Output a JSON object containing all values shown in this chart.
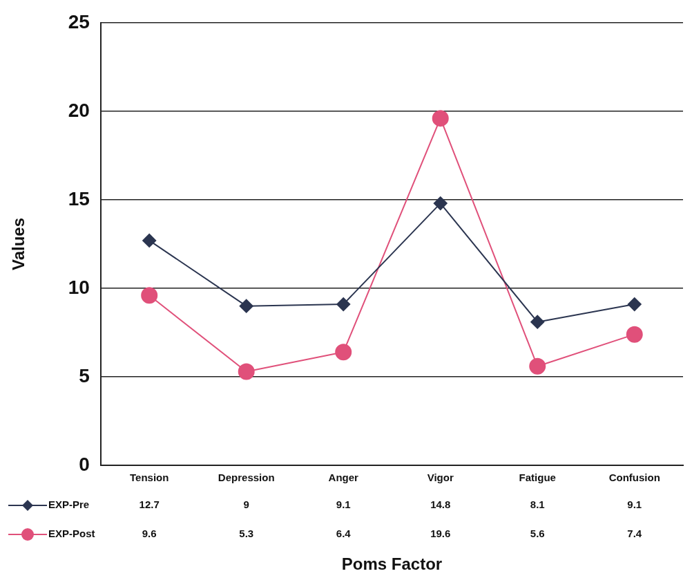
{
  "chart_data": {
    "type": "line",
    "xlabel": "Poms Factor",
    "ylabel": "Values",
    "categories": [
      "Tension",
      "Depression",
      "Anger",
      "Vigor",
      "Fatigue",
      "Confusion"
    ],
    "series": [
      {
        "name": "EXP-Pre",
        "color": "#2b3550",
        "marker": "diamond",
        "values": [
          12.7,
          9,
          9.1,
          14.8,
          8.1,
          9.1
        ]
      },
      {
        "name": "EXP-Post",
        "color": "#e0507a",
        "marker": "circle",
        "values": [
          9.6,
          5.3,
          6.4,
          19.6,
          5.6,
          7.4
        ]
      }
    ],
    "ylim": [
      0,
      25
    ],
    "yticks": [
      0,
      5,
      10,
      15,
      20,
      25
    ],
    "grid": "y",
    "legend": "bottom",
    "data_labels": true,
    "line_style": "solid"
  }
}
